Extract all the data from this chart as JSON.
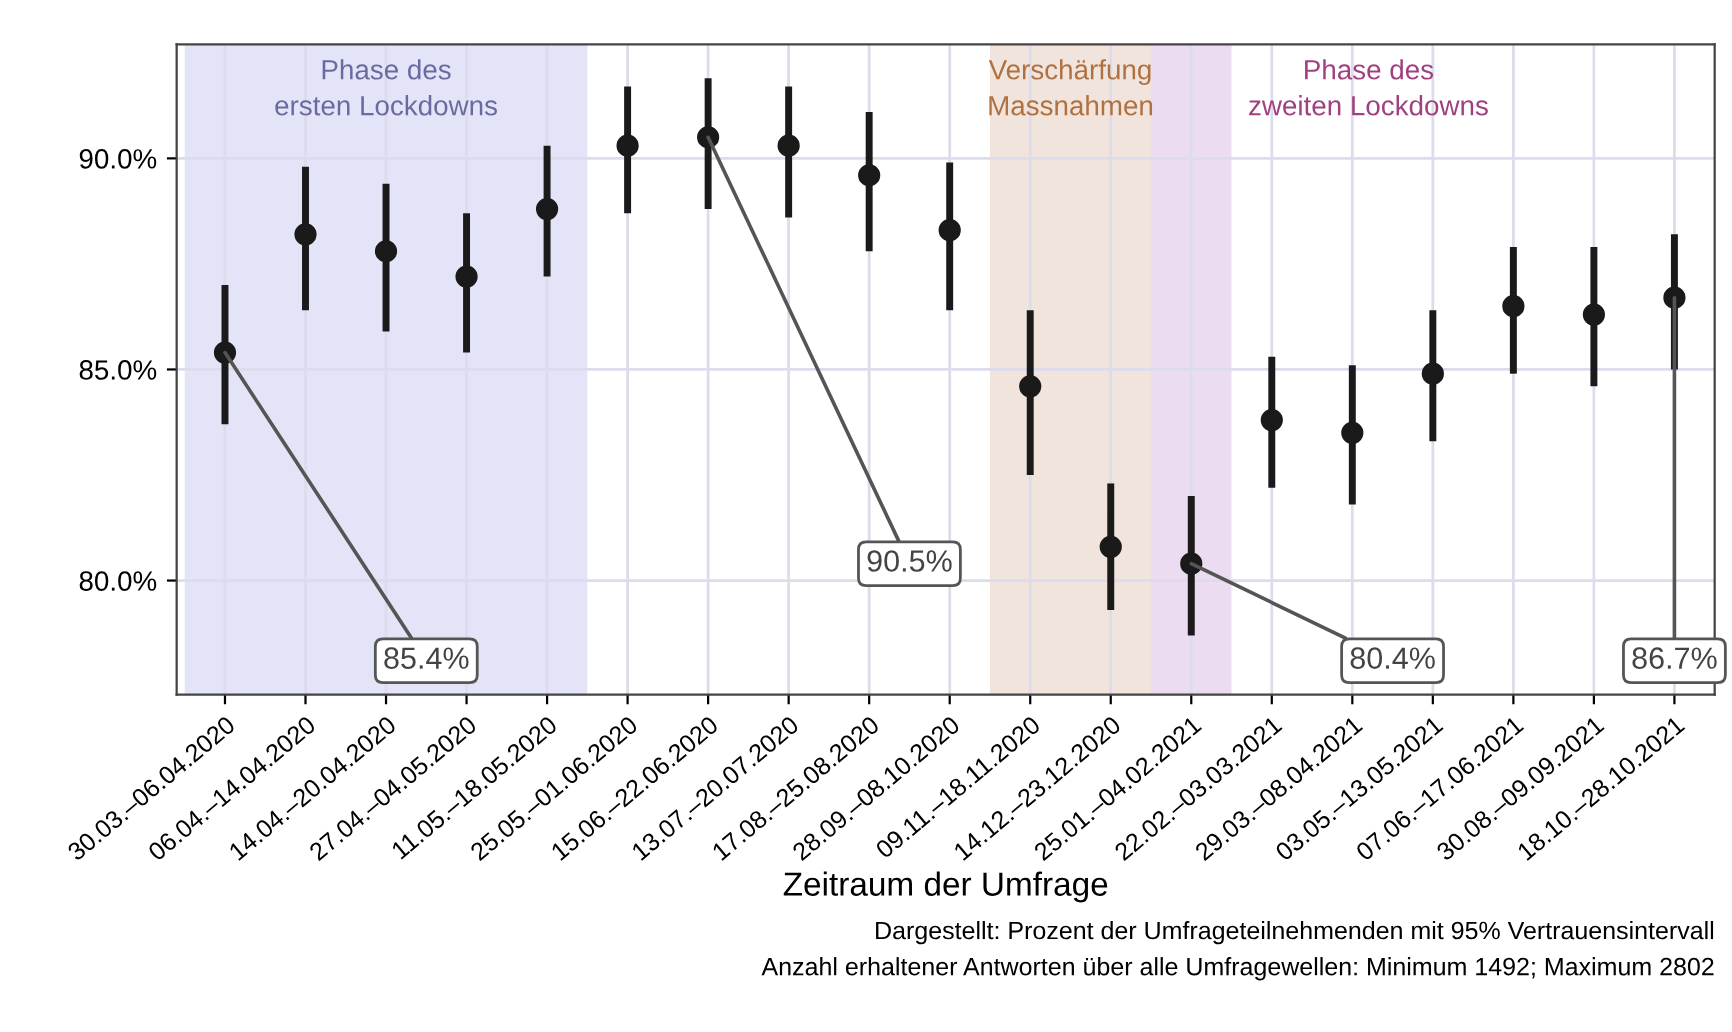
{
  "chart_data": {
    "type": "scatter",
    "categories": [
      "30.03.–06.04.2020",
      "06.04.–14.04.2020",
      "14.04.–20.04.2020",
      "27.04.–04.05.2020",
      "11.05.–18.05.2020",
      "25.05.–01.06.2020",
      "15.06.–22.06.2020",
      "13.07.–20.07.2020",
      "17.08.–25.08.2020",
      "28.09.–08.10.2020",
      "09.11.–18.11.2020",
      "14.12.–23.12.2020",
      "25.01.–04.02.2021",
      "22.02.–03.03.2021",
      "29.03.–08.04.2021",
      "03.05.–13.05.2021",
      "07.06.–17.06.2021",
      "30.08.–09.09.2021",
      "18.10.–28.10.2021"
    ],
    "values": [
      85.4,
      88.2,
      87.8,
      87.2,
      88.8,
      90.3,
      90.5,
      90.3,
      89.6,
      88.3,
      84.6,
      80.8,
      80.4,
      83.8,
      83.5,
      84.9,
      86.5,
      86.3,
      86.7
    ],
    "errors": [
      [
        83.7,
        87.0
      ],
      [
        86.4,
        89.8
      ],
      [
        85.9,
        89.4
      ],
      [
        85.4,
        88.7
      ],
      [
        87.2,
        90.3
      ],
      [
        88.7,
        91.7
      ],
      [
        88.8,
        91.9
      ],
      [
        88.6,
        91.7
      ],
      [
        87.8,
        91.1
      ],
      [
        86.4,
        89.9
      ],
      [
        82.5,
        86.4
      ],
      [
        79.3,
        82.3
      ],
      [
        78.7,
        82.0
      ],
      [
        82.2,
        85.3
      ],
      [
        81.8,
        85.1
      ],
      [
        83.3,
        86.4
      ],
      [
        84.9,
        87.9
      ],
      [
        84.6,
        87.9
      ],
      [
        85.0,
        88.2
      ]
    ],
    "color": "#1a1a1a",
    "marker": "circle",
    "xlabel": "Zeitraum der Umfrage",
    "ylim": [
      77.3,
      92.7
    ],
    "yticks": [
      {
        "value": 80,
        "label": "80.0%"
      },
      {
        "value": 85,
        "label": "85.0%"
      },
      {
        "value": 90,
        "label": "90.0%"
      }
    ],
    "grid": true,
    "bands": [
      {
        "axis": "x",
        "from": "30.03.–06.04.2020",
        "to": "11.05.–18.05.2020",
        "label": "Phase des\nersten Lockdowns",
        "color": "#e4e4f8"
      },
      {
        "axis": "x",
        "from": "09.11.–18.11.2020",
        "to": "14.12.–23.12.2020",
        "label": "Verschärfung\nMassnahmen",
        "color": "#f0e4dc"
      },
      {
        "axis": "x",
        "from": "25.01.–04.02.2021",
        "to": "25.01.–04.02.2021",
        "label": "Phase des\nzweiten Lockdowns",
        "color": "#ecdcf2"
      }
    ],
    "annotations": [
      {
        "text": "85.4%",
        "x": "30.03.–06.04.2020",
        "y": 85.4
      },
      {
        "text": "90.5%",
        "x": "15.06.–22.06.2020",
        "y": 90.5
      },
      {
        "text": "80.4%",
        "x": "25.01.–04.02.2021",
        "y": 80.4
      },
      {
        "text": "86.7%",
        "x": "18.10.–28.10.2021",
        "y": 86.7
      },
      "Dargestellt: Prozent der Umfrageteilnehmenden mit 95% Vertrauensintervall",
      "Anzahl erhaltener Antworten über alle Umfragewellen: Minimum 1492; Maximum 2802"
    ]
  }
}
